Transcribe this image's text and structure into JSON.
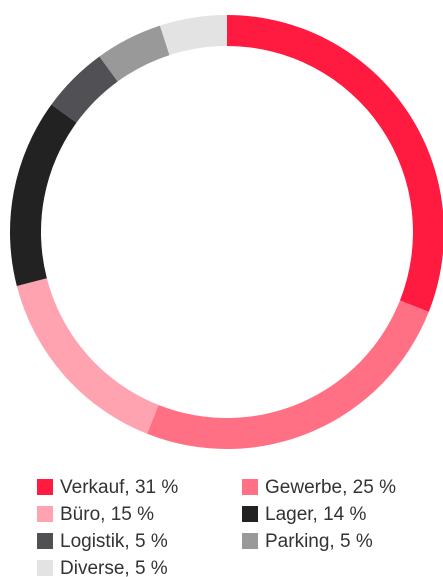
{
  "chart_data": {
    "type": "donut",
    "categories": [
      "Verkauf, 31 %",
      "Gewerbe, 25 %",
      "Büro, 15 %",
      "Lager, 14 %",
      "Logistik, 5 %",
      "Parking, 5 %",
      "Diverse, 5 %"
    ],
    "values": [
      31,
      25,
      15,
      14,
      5,
      5,
      5
    ],
    "colors": [
      "#ff1a40",
      "#ff7085",
      "#ffa3b0",
      "#222222",
      "#505055",
      "#999999",
      "#e3e3e3"
    ]
  }
}
